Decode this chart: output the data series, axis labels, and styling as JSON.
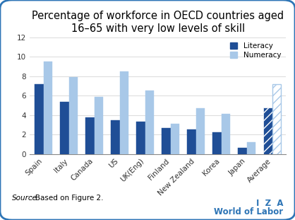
{
  "title": "Percentage of workforce in OECD countries aged\n16–65 with very low levels of skill",
  "categories": [
    "Spain",
    "Italy",
    "Canada",
    "US",
    "UK(Eng)",
    "Finland",
    "New Zealand",
    "Korea",
    "Japan",
    "Average"
  ],
  "literacy": [
    7.2,
    5.4,
    3.8,
    3.5,
    3.3,
    2.7,
    2.5,
    2.2,
    0.6,
    4.8
  ],
  "numeracy": [
    9.5,
    7.9,
    5.9,
    8.5,
    6.5,
    3.1,
    4.7,
    4.1,
    1.2,
    7.2
  ],
  "numeracy_average_hatch": true,
  "literacy_color": "#1F4E96",
  "numeracy_color": "#A8C8E8",
  "average_hatch": "///",
  "ylim": [
    0,
    12
  ],
  "yticks": [
    0,
    2,
    4,
    6,
    8,
    10,
    12
  ],
  "source_label": "Source",
  "source_rest": ": Based on Figure 2.",
  "iza_text": "I  Z  A",
  "wol_text": "World of Labor",
  "legend_labels": [
    "Literacy",
    "Numeracy"
  ],
  "bar_width": 0.35,
  "background_color": "#FFFFFF",
  "border_color": "#2E75B6",
  "title_fontsize": 10.5,
  "tick_fontsize": 7.5,
  "source_fontsize": 7.5,
  "iza_fontsize": 8.5
}
